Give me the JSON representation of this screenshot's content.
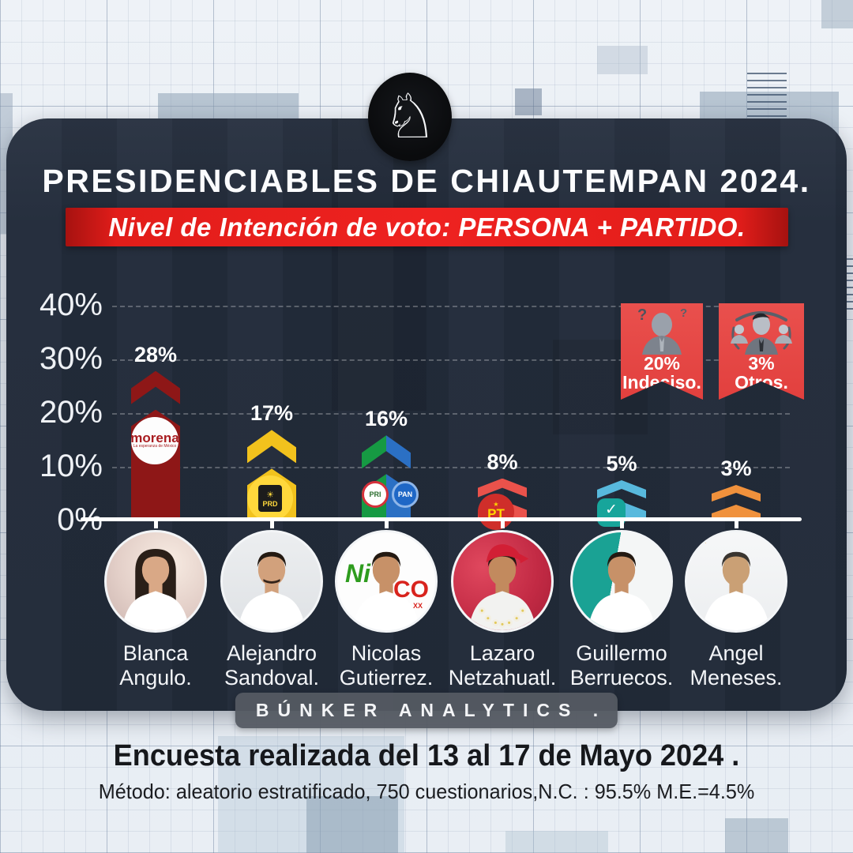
{
  "page": {
    "title": "PRESIDENCIABLES DE CHIAUTEMPAN 2024.",
    "subtitle": "Nivel de Intención de voto: PERSONA + PARTIDO."
  },
  "logo": {
    "label": "knight-chess-logo",
    "glyph": "♘"
  },
  "chart_data": {
    "type": "bar",
    "title": "Nivel de Intención de voto: PERSONA + PARTIDO.",
    "categories": [
      "Blanca Angulo.",
      "Alejandro Sandoval.",
      "Nicolas Gutierrez.",
      "Lazaro Netzahuatl.",
      "Guillermo Berruecos.",
      "Angel Meneses."
    ],
    "values": [
      28,
      17,
      16,
      8,
      5,
      3
    ],
    "value_labels": [
      "28%",
      "17%",
      "16%",
      "8%",
      "5%",
      "3%"
    ],
    "y_ticks": [
      "40%",
      "30%",
      "20%",
      "10%",
      "0%"
    ],
    "y_tick_values": [
      40,
      30,
      20,
      10,
      0
    ],
    "ylim": [
      0,
      40
    ],
    "grid": "dashed-horizontal",
    "legend_position": "none",
    "bar_style": "chevron-arrow",
    "bar_colors": [
      [
        "#8E1717"
      ],
      [
        "#F2C21D"
      ],
      [
        "#169A43",
        "#2B70C4"
      ],
      [
        "#EA524B"
      ],
      [
        "#58B9DD"
      ],
      [
        "#F0913C"
      ]
    ],
    "bar_logos": [
      "morena",
      "PRD",
      "PRI + PAN",
      "PT",
      "check",
      "none"
    ],
    "annotations": [
      {
        "value": "20%",
        "label": "Indeciso."
      },
      {
        "value": "3%",
        "label": "Otros."
      }
    ]
  },
  "candidates": [
    {
      "first": "Blanca",
      "last": "Angulo.",
      "value_label": "28%",
      "logo_text": "morena",
      "logo_tagline": "La esperanza de México"
    },
    {
      "first": "Alejandro",
      "last": "Sandoval.",
      "value_label": "17%",
      "logo_text": "PRD"
    },
    {
      "first": "Nicolas",
      "last": "Gutierrez.",
      "value_label": "16%",
      "logo_text": "PRI PAN",
      "photo_text_left": "Ni",
      "photo_text_right": "CO"
    },
    {
      "first": "Lazaro",
      "last": "Netzahuatl.",
      "value_label": "8%",
      "logo_text": "PT"
    },
    {
      "first": "Guillermo",
      "last": "Berruecos.",
      "value_label": "5%",
      "logo_text": "✓"
    },
    {
      "first": "Angel",
      "last": "Meneses.",
      "value_label": "3%",
      "logo_text": ""
    }
  ],
  "aside_ribbons": [
    {
      "value": "20%",
      "label": "Indeciso.",
      "icon": "undecided-person-icon"
    },
    {
      "value": "3%",
      "label": "Otros.",
      "icon": "group-people-icon"
    }
  ],
  "footer": {
    "brand": "BÚNKER ANALYTICS .",
    "line1": "Encuesta realizada del 13 al 17 de Mayo 2024 .",
    "line2": "Método: aleatorio estratificado, 750 cuestionarios,N.C. : 95.5% M.E.=4.5%"
  },
  "colors": {
    "card_bg": "#222B39",
    "banner_red": "#E21D1A",
    "ribbon_red": "#E4524F",
    "axis_white": "#FFFFFF",
    "badge_gray": "#545A62"
  }
}
